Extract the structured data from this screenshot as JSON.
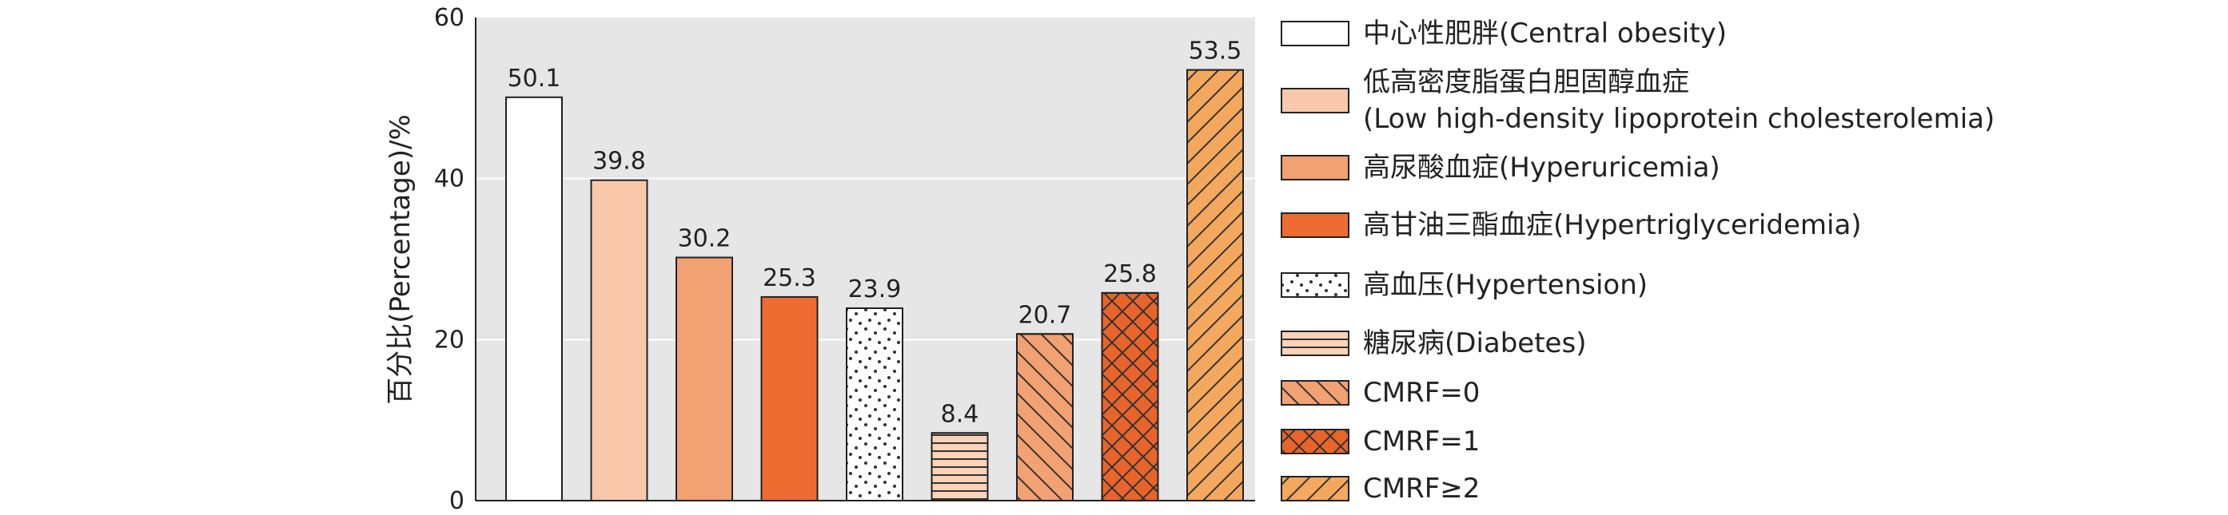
{
  "chart_data": {
    "type": "bar",
    "title": "",
    "xlabel": "",
    "ylabel": "百分比(Percentage)/%",
    "ylim": [
      0,
      60
    ],
    "yticks": [
      0,
      20,
      40,
      60
    ],
    "grid": true,
    "legend_position": "right",
    "categories": [
      "中心性肥胖(Central obesity)",
      "低高密度脂蛋白胆固醇血症 (Low high-density lipoprotein cholesterolemia)",
      "高尿酸血症(Hyperuricemia)",
      "高甘油三酯血症(Hypertriglyceridemia)",
      "高血压(Hypertension)",
      "糖尿病(Diabetes)",
      "CMRF=0",
      "CMRF=1",
      "CMRF≥2"
    ],
    "values": [
      50.1,
      39.8,
      30.2,
      25.3,
      23.9,
      8.4,
      20.7,
      25.8,
      53.5
    ],
    "data_labels": [
      "50.1",
      "39.8",
      "30.2",
      "25.3",
      "23.9",
      "8.4",
      "20.7",
      "25.8",
      "53.5"
    ],
    "legend": [
      {
        "lines": [
          "中心性肥胖(Central obesity)"
        ],
        "fill": "#ffffff",
        "pattern": "none"
      },
      {
        "lines": [
          "低高密度脂蛋白胆固醇血症",
          "(Low high-density lipoprotein cholesterolemia)"
        ],
        "fill": "#f9c8aa",
        "pattern": "none"
      },
      {
        "lines": [
          "高尿酸血症(Hyperuricemia)"
        ],
        "fill": "#f2a172",
        "pattern": "none"
      },
      {
        "lines": [
          "高甘油三酯血症(Hypertriglyceridemia)"
        ],
        "fill": "#ee6b32",
        "pattern": "none"
      },
      {
        "lines": [
          "高血压(Hypertension)"
        ],
        "fill": "#ffffff",
        "pattern": "dots"
      },
      {
        "lines": [
          "糖尿病(Diabetes)"
        ],
        "fill": "#fbd3b9",
        "pattern": "hlines"
      },
      {
        "lines": [
          "CMRF=0"
        ],
        "fill": "#f2a172",
        "pattern": "back-diag"
      },
      {
        "lines": [
          "CMRF=1"
        ],
        "fill": "#e8642a",
        "pattern": "cross"
      },
      {
        "lines": [
          "CMRF≥2"
        ],
        "fill": "#f4a85e",
        "pattern": "fwd-diag"
      }
    ],
    "colors": {
      "plot_background": "#e6e6e6",
      "gridline": "#ffffff",
      "outline": "#222222"
    }
  }
}
